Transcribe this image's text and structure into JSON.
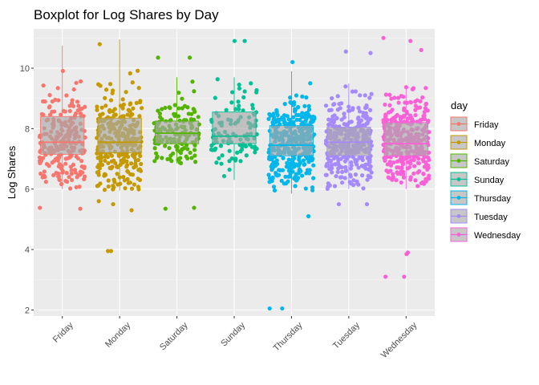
{
  "chart_data": {
    "type": "boxplot",
    "title": "Boxplot for Log Shares by Day",
    "xlabel": "",
    "ylabel": "Log Shares",
    "ylim": [
      1.8,
      11.3
    ],
    "yticks": [
      2,
      4,
      6,
      8,
      10
    ],
    "grid": true,
    "legend": {
      "title": "day",
      "placement": "right"
    },
    "categories": [
      "Friday",
      "Monday",
      "Saturday",
      "Sunday",
      "Thursday",
      "Tuesday",
      "Wednesday"
    ],
    "colors": [
      "#F8766D",
      "#C49A00",
      "#53B400",
      "#00C094",
      "#00B6EB",
      "#A58AFF",
      "#FB61D7"
    ],
    "series": [
      {
        "name": "Friday",
        "min": 6.0,
        "q1": 7.15,
        "median": 7.55,
        "q3": 8.4,
        "max": 10.75,
        "outliers": [
          5.35,
          5.38
        ]
      },
      {
        "name": "Monday",
        "min": 5.95,
        "q1": 7.2,
        "median": 7.55,
        "q3": 8.35,
        "max": 10.95,
        "outliers": [
          3.95,
          3.95,
          5.3,
          5.5,
          5.6
        ]
      },
      {
        "name": "Saturday",
        "min": 6.85,
        "q1": 7.5,
        "median": 7.85,
        "q3": 8.25,
        "max": 9.7,
        "outliers": [
          5.35,
          5.38,
          10.35,
          10.35
        ]
      },
      {
        "name": "Sunday",
        "min": 6.3,
        "q1": 7.5,
        "median": 7.75,
        "q3": 8.55,
        "max": 9.7,
        "outliers": [
          10.9,
          10.9
        ]
      },
      {
        "name": "Thursday",
        "min": 5.85,
        "q1": 7.1,
        "median": 7.45,
        "q3": 8.1,
        "max": 9.9,
        "outliers": [
          2.05,
          2.05,
          5.1,
          10.2
        ]
      },
      {
        "name": "Tuesday",
        "min": 6.0,
        "q1": 7.1,
        "median": 7.55,
        "q3": 8.05,
        "max": 9.5,
        "outliers": [
          5.5,
          5.5,
          10.5,
          10.55
        ]
      },
      {
        "name": "Wednesday",
        "min": 6.0,
        "q1": 7.1,
        "median": 7.5,
        "q3": 8.2,
        "max": 9.4,
        "outliers": [
          3.1,
          3.1,
          3.85,
          3.9,
          10.9,
          11.0,
          10.6
        ]
      }
    ]
  }
}
